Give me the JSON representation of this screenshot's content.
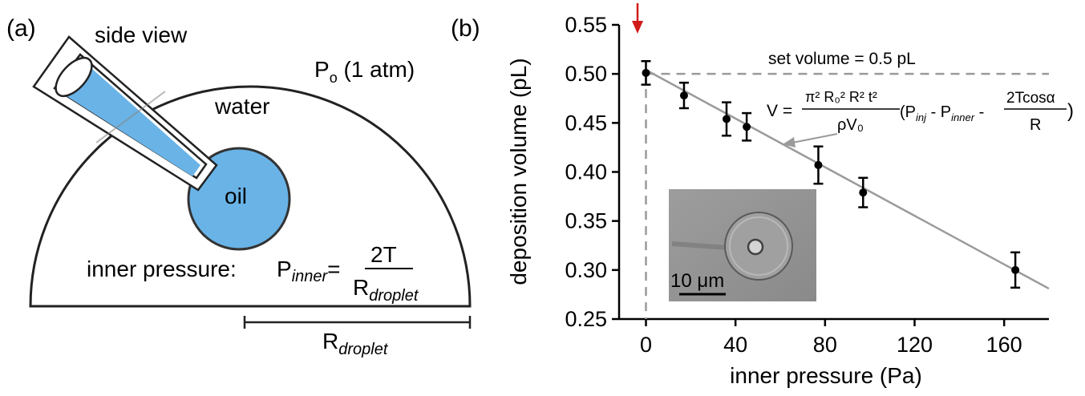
{
  "panel_a": {
    "label": "(a)",
    "side_view": "side view",
    "pressure_outside": "P",
    "pressure_outside_sub": "o",
    "pressure_outside_rest": " (1 atm)",
    "water": "water",
    "oil": "oil",
    "inner_label": "inner pressure:",
    "p_inner": "P",
    "p_inner_sub": "inner",
    "equals": "=",
    "numerator": "2T",
    "denominator": "R",
    "denominator_sub": "droplet",
    "radius_label": "R",
    "radius_sub": "droplet",
    "colors": {
      "fluid": "#69b3e7",
      "outline": "#333333"
    }
  },
  "panel_b": {
    "label": "(b)",
    "set_volume_label": "set volume = 0.5 pL",
    "formula": {
      "lhs": "V =",
      "num": "π² R₀² R² t²",
      "den": "ρV₀",
      "p_inj": "(P",
      "p_inj_sub": "inj",
      "minus1": " - P",
      "p_inner_sub": "inner",
      "minus2": " -",
      "frac_num": "2Tcosα",
      "frac_den": "R",
      "close": ")"
    },
    "inset": {
      "scale_bar_label": "10 μm"
    },
    "colors": {
      "fit_line": "#9a9a9a",
      "marker": "#000000",
      "arrow": "#d11a1a",
      "guide": "#9a9a9a"
    }
  },
  "chart_data": {
    "type": "scatter",
    "xlabel": "inner pressure (Pa)",
    "ylabel": "deposition volume (pL)",
    "xlim": [
      -12,
      180
    ],
    "ylim": [
      0.25,
      0.55
    ],
    "xticks": [
      0,
      40,
      80,
      120,
      160
    ],
    "yticks": [
      0.25,
      0.3,
      0.35,
      0.4,
      0.45,
      0.5,
      0.55
    ],
    "ytick_labels": [
      "0.25",
      "0.30",
      "0.35",
      "0.40",
      "0.45",
      "0.50",
      "0.55"
    ],
    "points": [
      {
        "x": 0,
        "y": 0.501,
        "err": 0.012
      },
      {
        "x": 17,
        "y": 0.478,
        "err": 0.013
      },
      {
        "x": 36,
        "y": 0.454,
        "err": 0.017
      },
      {
        "x": 45,
        "y": 0.446,
        "err": 0.014
      },
      {
        "x": 77,
        "y": 0.407,
        "err": 0.019
      },
      {
        "x": 97,
        "y": 0.379,
        "err": 0.015
      },
      {
        "x": 165,
        "y": 0.3,
        "err": 0.018
      }
    ],
    "fit_line": {
      "x": [
        0,
        180
      ],
      "y": [
        0.504,
        0.281
      ]
    },
    "reference_y": 0.5,
    "reference_x": 0
  }
}
